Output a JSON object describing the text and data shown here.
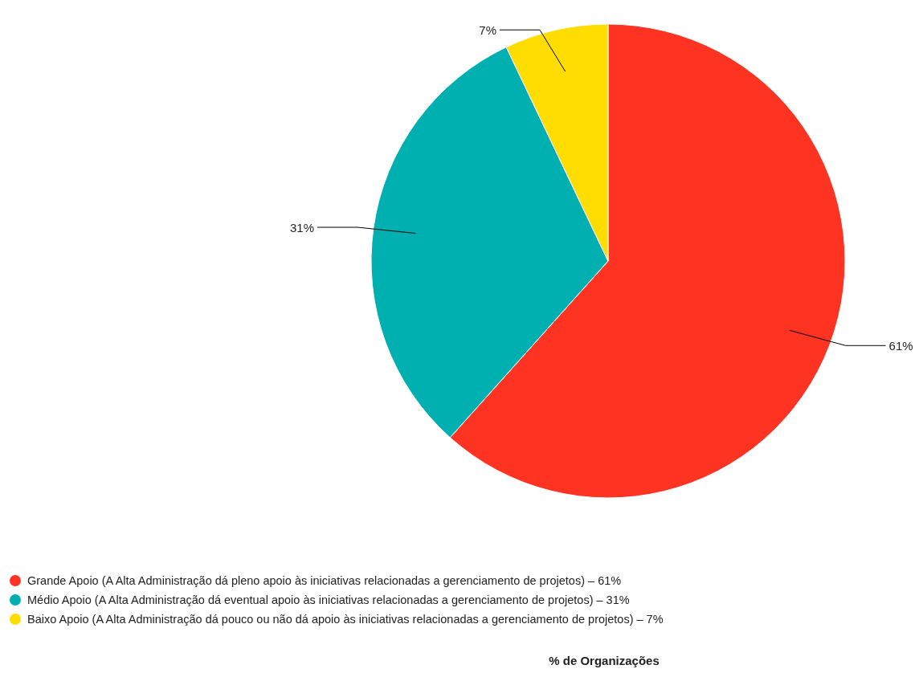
{
  "chart_data": {
    "type": "pie",
    "title": "% de Organizações",
    "categories": [
      "Grande Apoio (A Alta Administração dá pleno apoio às iniciativas relacionadas a gerenciamento de projetos) – 61%",
      "Médio Apoio (A Alta Administração dá eventual apoio às iniciativas relacionadas a gerenciamento de projetos) – 31%",
      "Baixo Apoio (A Alta Administração dá pouco ou não dá apoio às iniciativas relacionadas a gerenciamento de projetos) – 7%"
    ],
    "values": [
      61,
      31,
      7
    ],
    "colors": [
      "#ff3322",
      "#00b0b0",
      "#ffdd00"
    ],
    "value_labels": [
      "61%",
      "31%",
      "7%"
    ],
    "legend": "bottom"
  }
}
